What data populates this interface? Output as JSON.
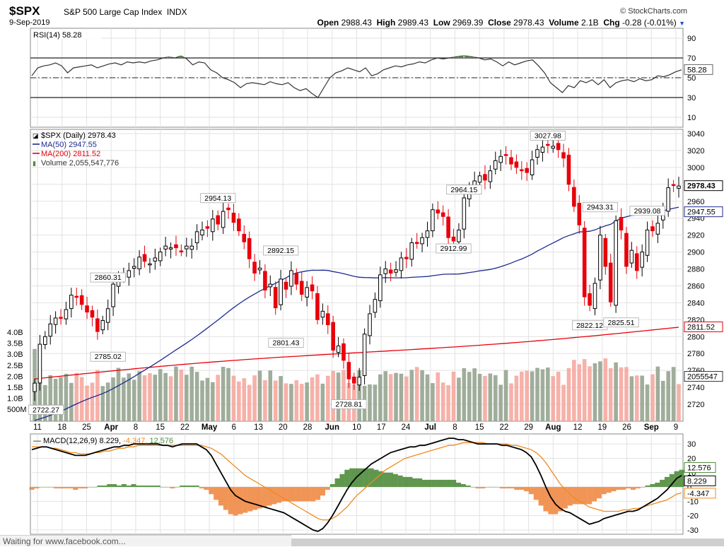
{
  "header": {
    "symbol": "$SPX",
    "name": "S&P 500 Large Cap Index",
    "exchange": "INDX",
    "date": "9-Sep-2019",
    "brand": "© StockCharts.com",
    "open_label": "Open",
    "open": "2988.43",
    "high_label": "High",
    "high": "2989.43",
    "low_label": "Low",
    "low": "2969.39",
    "close_label": "Close",
    "close": "2978.43",
    "volume_label": "Volume",
    "volume": "2.1B",
    "chg_label": "Chg",
    "chg": "-0.28 (-0.01%)"
  },
  "status_text": "Waiting for www.facebook.com...",
  "colors": {
    "up": "#000000",
    "down": "#e8000b",
    "ma50": "#1d2b8f",
    "ma200": "#e8000b",
    "vol_up": "#8f9f8a",
    "vol_down": "#f4a39a",
    "rsi": "#333333",
    "macd": "#000000",
    "signal": "#f08a1e",
    "hist_pos": "#4f8c3c",
    "hist_neg": "#ef8a45"
  },
  "chart_data": [
    {
      "type": "line",
      "title": "RSI(14) 58.28",
      "ylim": [
        0,
        100
      ],
      "yticks": [
        10,
        30,
        50,
        70,
        90
      ],
      "levels": [
        30,
        70
      ],
      "current_label": "58.28",
      "values": [
        52,
        60,
        62,
        63,
        65,
        62,
        55,
        60,
        61,
        62,
        63,
        60,
        62,
        64,
        65,
        63,
        66,
        65,
        66,
        65,
        67,
        68,
        70,
        71,
        70,
        72,
        69,
        63,
        66,
        65,
        58,
        55,
        50,
        48,
        45,
        40,
        44,
        45,
        44,
        43,
        46,
        44,
        43,
        45,
        40,
        37,
        39,
        34,
        30,
        40,
        50,
        55,
        57,
        60,
        58,
        56,
        60,
        52,
        54,
        58,
        60,
        62,
        61,
        63,
        64,
        66,
        65,
        68,
        70,
        69,
        70,
        71,
        72,
        72,
        71,
        70,
        68,
        69,
        66,
        62,
        66,
        63,
        65,
        67,
        68,
        62,
        55,
        45,
        40,
        35,
        42,
        40,
        47,
        45,
        48,
        43,
        48,
        40,
        45,
        47,
        48,
        46,
        49,
        47,
        48,
        52,
        51,
        53,
        56,
        58
      ]
    },
    {
      "type": "candlestick",
      "title": "$SPX (Daily) 2978.43",
      "legend": [
        "MA(50) 2947.55",
        "MA(200) 2811.52",
        "Volume 2,055,547,776"
      ],
      "ylim": [
        2700,
        3045
      ],
      "yticks": [
        2720,
        2740,
        2760,
        2780,
        2800,
        2820,
        2840,
        2860,
        2880,
        2900,
        2920,
        2940,
        2960,
        2980,
        3000,
        3020,
        3040
      ],
      "x_tick_labels": [
        "11",
        "18",
        "25",
        "Apr",
        "8",
        "15",
        "22",
        "May",
        "6",
        "13",
        "20",
        "28",
        "Jun",
        "10",
        "17",
        "24",
        "Jul",
        "8",
        "15",
        "22",
        "29",
        "Aug",
        "12",
        "19",
        "26",
        "Sep",
        "9"
      ],
      "closes": [
        2745,
        2791,
        2800,
        2815,
        2822,
        2822,
        2832,
        2849,
        2847,
        2838,
        2829,
        2823,
        2806,
        2819,
        2833,
        2862,
        2867,
        2873,
        2878,
        2883,
        2894,
        2889,
        2886,
        2893,
        2900,
        2907,
        2905,
        2905,
        2900,
        2907,
        2907,
        2924,
        2926,
        2928,
        2939,
        2933,
        2948,
        2950,
        2935,
        2925,
        2912,
        2892,
        2875,
        2881,
        2855,
        2862,
        2834,
        2868,
        2856,
        2878,
        2862,
        2850,
        2858,
        2854,
        2820,
        2830,
        2814,
        2784,
        2789,
        2772,
        2750,
        2745,
        2752,
        2803,
        2827,
        2844,
        2873,
        2880,
        2875,
        2879,
        2893,
        2892,
        2911,
        2910,
        2917,
        2925,
        2950,
        2946,
        2942,
        2917,
        2913,
        2926,
        2964,
        2976,
        2984,
        2990,
        2985,
        2996,
        3008,
        3013,
        3014,
        3004,
        3000,
        2996,
        2994,
        3009,
        3021,
        3024,
        3026,
        3025,
        3021,
        3011,
        2980,
        2954,
        2932,
        2847,
        2837,
        2863,
        2920,
        2883,
        2841,
        2937,
        2926,
        2883,
        2902,
        2878,
        2900,
        2926,
        2925,
        2934,
        2952,
        2976,
        2979,
        2978
      ],
      "labels": [
        {
          "text": "2860.31"
        },
        {
          "text": "2785.02"
        },
        {
          "text": "2722.27"
        },
        {
          "text": "2954.13"
        },
        {
          "text": "2892.15"
        },
        {
          "text": "2801.43"
        },
        {
          "text": "2728.81"
        },
        {
          "text": "2964.15"
        },
        {
          "text": "2912.99"
        },
        {
          "text": "3027.98"
        },
        {
          "text": "2943.31"
        },
        {
          "text": "2939.08"
        },
        {
          "text": "2822.12"
        },
        {
          "text": "2825.51"
        }
      ],
      "last_labels": {
        "close": "2978.43",
        "ma50": "2947.55",
        "ma200": "2811.52",
        "volume": "2055547"
      },
      "volume_ticks": [
        "4.0B",
        "3.5B",
        "3.0B",
        "2.5B",
        "2.0B",
        "1.5B",
        "1.0B",
        "500M"
      ],
      "volume_range_B": [
        0,
        4.0
      ]
    },
    {
      "type": "line",
      "title": "MACD(12,26,9)",
      "macd_label": "8.229",
      "signal_label": "-4.347",
      "hist_label": "12.576",
      "ylim": [
        -33,
        37
      ],
      "yticks": [
        -30,
        -20,
        -10,
        0,
        10,
        20,
        30
      ],
      "current_labels": [
        "12.576",
        "8.229",
        "-4.347"
      ],
      "macd": [
        26,
        27,
        28,
        28,
        27,
        26,
        25,
        24,
        23,
        22,
        22,
        22,
        23,
        24,
        25,
        26,
        27,
        28,
        28,
        29,
        29,
        30,
        30,
        30,
        30,
        30,
        30,
        29,
        29,
        28,
        29,
        30,
        30,
        30,
        30,
        28,
        26,
        22,
        16,
        10,
        4,
        -2,
        -6,
        -8,
        -10,
        -11,
        -12,
        -13,
        -14,
        -15,
        -16,
        -17,
        -18,
        -20,
        -22,
        -24,
        -26,
        -28,
        -30,
        -31,
        -29,
        -25,
        -20,
        -14,
        -8,
        -2,
        3,
        7,
        10,
        13,
        16,
        18,
        20,
        22,
        24,
        25,
        26,
        27,
        28,
        28,
        29,
        29,
        30,
        31,
        32,
        33,
        34,
        34,
        33,
        33,
        32,
        31,
        30,
        30,
        30,
        30,
        30,
        29,
        29,
        28,
        27,
        26,
        24,
        21,
        15,
        8,
        0,
        -7,
        -12,
        -15,
        -17,
        -18,
        -20,
        -22,
        -24,
        -26,
        -25,
        -24,
        -22,
        -21,
        -20,
        -19,
        -18,
        -17,
        -17,
        -16,
        -14,
        -12,
        -10,
        -8,
        -5,
        -2,
        2,
        6,
        8
      ],
      "signal": [
        28,
        28,
        28,
        28,
        27,
        27,
        26,
        25,
        24,
        24,
        23,
        23,
        23,
        24,
        24,
        25,
        25,
        26,
        27,
        27,
        28,
        28,
        29,
        29,
        29,
        29,
        29,
        29,
        29,
        29,
        29,
        29,
        29,
        29,
        29,
        29,
        28,
        27,
        25,
        23,
        20,
        17,
        14,
        11,
        8,
        6,
        4,
        2,
        0,
        -2,
        -4,
        -6,
        -8,
        -10,
        -12,
        -14,
        -16,
        -18,
        -20,
        -22,
        -23,
        -23,
        -22,
        -20,
        -17,
        -14,
        -10,
        -6,
        -3,
        0,
        3,
        6,
        9,
        12,
        14,
        16,
        18,
        20,
        21,
        22,
        23,
        24,
        25,
        26,
        27,
        28,
        29,
        29,
        30,
        31,
        31,
        31,
        31,
        31,
        30,
        30,
        30,
        30,
        30,
        29,
        29,
        28,
        27,
        26,
        24,
        21,
        17,
        12,
        7,
        2,
        -2,
        -5,
        -8,
        -10,
        -12,
        -14,
        -15,
        -16,
        -17,
        -17,
        -17,
        -17,
        -16,
        -16,
        -15,
        -15,
        -14,
        -13,
        -12,
        -11,
        -10,
        -9,
        -7,
        -5,
        -4
      ]
    }
  ]
}
